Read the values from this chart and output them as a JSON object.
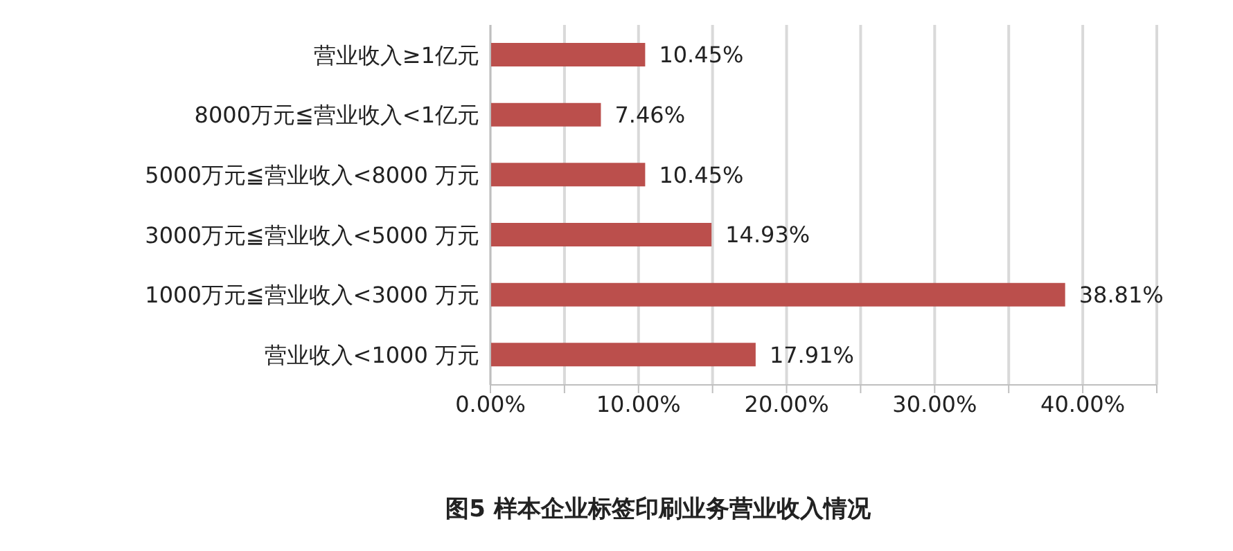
{
  "chart_data": {
    "type": "bar",
    "orientation": "horizontal",
    "title": "图5 样本企业标签印刷业务营业收入情况",
    "categories": [
      "营业收入≥1亿元",
      "8000万元≦营业收入<1亿元",
      "5000万元≦营业收入<8000 万元",
      "3000万元≦营业收入<5000 万元",
      "1000万元≦营业收入<3000 万元",
      "营业收入<1000 万元"
    ],
    "values": [
      10.45,
      7.46,
      10.45,
      14.93,
      38.81,
      17.91
    ],
    "value_labels": [
      "10.45%",
      "7.46%",
      "10.45%",
      "14.93%",
      "38.81%",
      "17.91%"
    ],
    "color": "#bb4f4c",
    "xlim": [
      0,
      45
    ],
    "xticks": [
      {
        "value": 0,
        "label": "0.00%"
      },
      {
        "value": 5,
        "label": null
      },
      {
        "value": 10,
        "label": "10.00%"
      },
      {
        "value": 15,
        "label": null
      },
      {
        "value": 20,
        "label": "20.00%"
      },
      {
        "value": 25,
        "label": null
      },
      {
        "value": 30,
        "label": "30.00%"
      },
      {
        "value": 35,
        "label": null
      },
      {
        "value": 40,
        "label": "40.00%"
      },
      {
        "value": 45,
        "label": null
      }
    ],
    "grid": "x"
  }
}
